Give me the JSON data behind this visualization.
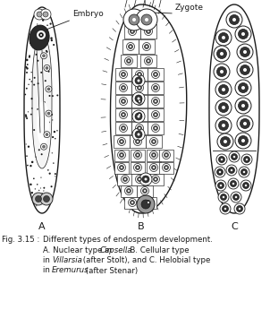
{
  "fig_label": "Fig. 3.15 :",
  "caption_line1": "Different types of endosperm development.",
  "caption_line2_plain1": "A. Nuclear type in ",
  "caption_line2_italic": "Capsella",
  "caption_line2_plain2": ". B. Cellular type",
  "caption_line3_plain1": "in ",
  "caption_line3_italic": "Villarsia",
  "caption_line3_plain2": " (after Stolt), and C. Helobial type",
  "caption_line4_plain1": "in ",
  "caption_line4_italic": "Eremurus",
  "caption_line4_plain2": " (after Stenar)",
  "label_A": "A",
  "label_B": "B",
  "label_C": "C",
  "label_embryo": "Embryo",
  "label_zygote": "Zygote",
  "bg_color": "#ffffff",
  "dc": "#1a1a1a"
}
